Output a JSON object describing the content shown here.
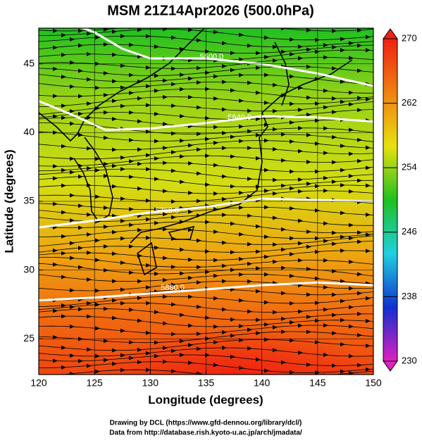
{
  "chart_data": {
    "type": "streamline-map",
    "title": "MSM 21Z14Apr2026 (500.0hPa)",
    "xlabel": "Longitude (degrees)",
    "ylabel": "Latitude  (degrees)",
    "xlim": [
      120,
      150
    ],
    "xticks": [
      120,
      125,
      130,
      135,
      140,
      145,
      150
    ],
    "ylim": [
      22.4,
      47.6
    ],
    "yticks": [
      25,
      30,
      35,
      40,
      45
    ],
    "contours": [
      {
        "value": 5500,
        "label": "5500.0"
      },
      {
        "value": 5640,
        "label": "5640.0"
      },
      {
        "value": 5760,
        "label": "5760.0"
      },
      {
        "value": 5880,
        "label": "5880.0"
      }
    ],
    "colorbar": {
      "lim": [
        230,
        270
      ],
      "ticks": [
        230,
        238,
        246,
        254,
        262,
        270
      ],
      "colors": [
        "#e020c0",
        "#1030d0",
        "#20d0e0",
        "#20c020",
        "#e8e010",
        "#f08010",
        "#f02010"
      ]
    },
    "credits": [
      "Drawing by DCL (https://www.gfd-dennou.org/library/dcl/)",
      "Data from http://database.rish.kyoto-u.ac.jp/arch/jmadata/"
    ]
  }
}
